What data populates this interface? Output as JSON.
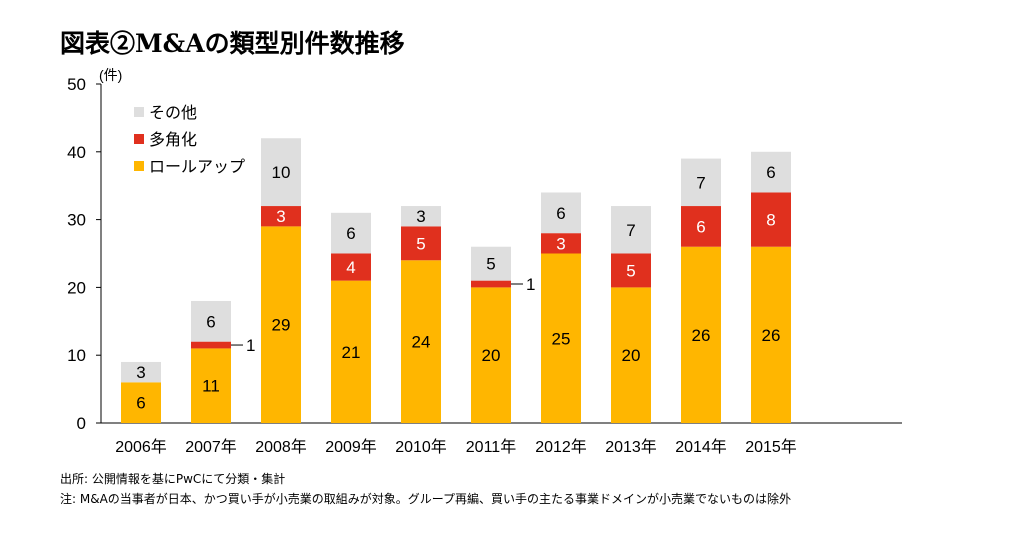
{
  "title": "図表②M&Aの類型別件数推移",
  "chart_data": {
    "type": "bar",
    "stacked": true,
    "title": "図表②M&Aの類型別件数推移",
    "ylabel": "(件)",
    "xlabel": "",
    "ylim": [
      0,
      50
    ],
    "yticks": [
      0,
      10,
      20,
      30,
      40,
      50
    ],
    "categories": [
      "2006年",
      "2007年",
      "2008年",
      "2009年",
      "2010年",
      "2011年",
      "2012年",
      "2013年",
      "2014年",
      "2015年"
    ],
    "series": [
      {
        "name": "ロールアップ",
        "color": "#FFB600",
        "label_color": "#000000",
        "values": [
          6,
          11,
          29,
          21,
          24,
          20,
          25,
          20,
          26,
          26
        ]
      },
      {
        "name": "多角化",
        "color": "#E0301E",
        "label_color": "#FFFFFF",
        "values": [
          0,
          1,
          3,
          4,
          5,
          1,
          3,
          5,
          6,
          8
        ]
      },
      {
        "name": "その他",
        "color": "#DEDEDE",
        "label_color": "#000000",
        "values": [
          3,
          6,
          10,
          6,
          3,
          5,
          6,
          7,
          7,
          6
        ]
      }
    ],
    "legend": [
      "その他",
      "多角化",
      "ロールアップ"
    ],
    "legend_position": "top-left",
    "outside_labels": [
      {
        "category": "2007年",
        "series": "多角化",
        "text": "1"
      },
      {
        "category": "2011年",
        "series": "多角化",
        "text": "1"
      }
    ]
  },
  "notes": {
    "source": "出所: 公開情報を基にPwCにて分類・集計",
    "note": "注: M&Aの当事者が日本、かつ買い手が小売業の取組みが対象。グループ再編、買い手の主たる事業ドメインが小売業でないものは除外"
  }
}
